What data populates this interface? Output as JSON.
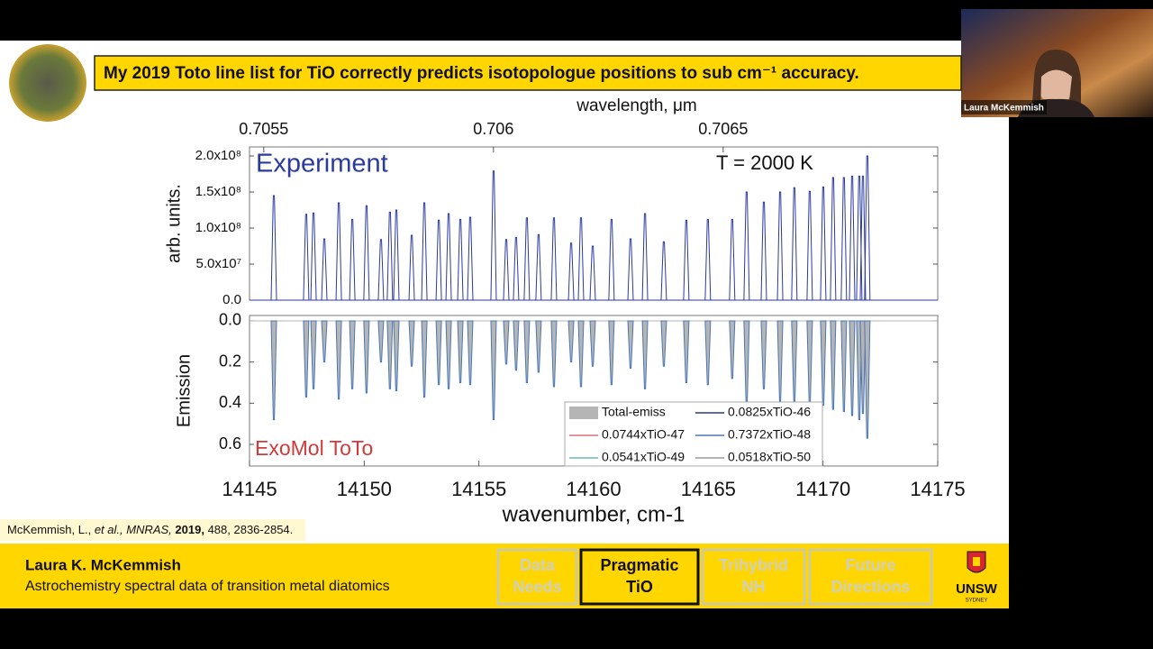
{
  "slide": {
    "title": "My 2019 Toto line list for TiO correctly predicts isotopologue positions to sub cm⁻¹ accuracy.",
    "reference": [
      "McKemmish, L.,",
      "et al., MNRAS,",
      "2019,",
      "488, 2836-2854."
    ],
    "footer_name": "Laura K. McKemmish",
    "footer_subtitle": "Astrochemistry spectral data of transition metal diatomics",
    "nav": [
      [
        "Data",
        "Needs"
      ],
      [
        "Pragmatic",
        "TiO"
      ],
      [
        "Trihybrid",
        "NH"
      ],
      [
        "Future",
        "Directions"
      ]
    ],
    "nav_active": 1,
    "logo": [
      "UNSW",
      "SYDNEY"
    ],
    "presenter": "Laura McKemmish"
  },
  "chart_data": [
    {
      "type": "stick",
      "ylabel": "arb. units.",
      "x2label": "wavelength, μm",
      "annotation": "T = 2000 K",
      "x": [
        14146.06,
        14147.47,
        14147.79,
        14148.26,
        14148.89,
        14149.48,
        14150.1,
        14150.73,
        14151.12,
        14151.4,
        14152.07,
        14152.62,
        14153.25,
        14153.68,
        14154.19,
        14154.62,
        14155.64,
        14156.19,
        14156.62,
        14157.09,
        14157.6,
        14158.27,
        14159.02,
        14159.45,
        14159.96,
        14160.78,
        14161.61,
        14162.24,
        14163.06,
        14164.04,
        14164.98,
        14166.04,
        14166.67,
        14167.42,
        14168.13,
        14168.75,
        14169.42,
        14170.01,
        14170.44,
        14170.91,
        14171.27,
        14171.58,
        14171.74,
        14171.93
      ],
      "series": [
        {
          "name": "Experiment",
          "color": "#2b3a9e",
          "values": [
            145000000,
            119000000,
            121000000,
            85000000,
            135000000,
            112000000,
            131000000,
            84000000,
            122000000,
            125000000,
            90000000,
            135000000,
            111000000,
            120000000,
            112000000,
            115000000,
            179000000,
            84000000,
            87000000,
            114000000,
            91000000,
            114000000,
            79000000,
            114000000,
            75000000,
            112000000,
            85000000,
            120000000,
            81000000,
            111000000,
            112000000,
            112000000,
            150000000,
            136000000,
            150000000,
            156000000,
            151000000,
            157000000,
            170000000,
            170000000,
            172000000,
            172000000,
            172000000,
            200000000
          ]
        }
      ],
      "xlim": [
        14145,
        14175
      ],
      "x2lim": [
        0.705469,
        0.706967
      ],
      "x2ticks": [
        0.7055,
        0.706,
        0.7065
      ],
      "ylim": [
        0,
        212500000
      ],
      "yticks": [
        {
          "value": 0,
          "label": "0.0"
        },
        {
          "value": 50000000,
          "label": "5.0x10⁷"
        },
        {
          "value": 100000000,
          "label": "1.0x10⁸"
        },
        {
          "value": 150000000,
          "label": "1.5x10⁸"
        },
        {
          "value": 200000000,
          "label": "2.0x10⁸"
        }
      ]
    },
    {
      "type": "stick",
      "inverted": true,
      "xlabel": "wavenumber, cm-1",
      "ylabel": "Emission",
      "annotation": "ExoMol ToTo",
      "legend": "lower right",
      "x": [
        14146.06,
        14147.47,
        14147.79,
        14148.26,
        14148.89,
        14149.48,
        14150.1,
        14150.73,
        14151.12,
        14151.4,
        14152.07,
        14152.62,
        14153.25,
        14153.68,
        14154.19,
        14154.62,
        14155.64,
        14156.19,
        14156.62,
        14157.09,
        14157.6,
        14158.27,
        14159.02,
        14159.45,
        14159.96,
        14160.78,
        14161.61,
        14162.24,
        14163.06,
        14164.04,
        14164.98,
        14166.04,
        14166.67,
        14167.42,
        14168.13,
        14168.75,
        14169.42,
        14170.01,
        14170.44,
        14170.91,
        14171.27,
        14171.58,
        14171.74,
        14171.93
      ],
      "series": [
        {
          "name": "Total-emiss",
          "color": "#b5b5b5",
          "values": [
            0.48,
            0.37,
            0.33,
            0.2,
            0.38,
            0.33,
            0.35,
            0.2,
            0.33,
            0.34,
            0.22,
            0.37,
            0.31,
            0.33,
            0.3,
            0.31,
            0.48,
            0.21,
            0.24,
            0.3,
            0.25,
            0.32,
            0.2,
            0.32,
            0.22,
            0.31,
            0.23,
            0.33,
            0.22,
            0.3,
            0.31,
            0.28,
            0.41,
            0.33,
            0.39,
            0.4,
            0.41,
            0.41,
            0.43,
            0.44,
            0.46,
            0.48,
            0.45,
            0.57
          ]
        },
        {
          "name": "0.0825xTiO-46",
          "color": "#2b3a7e"
        },
        {
          "name": "0.0744xTiO-47",
          "color": "#d9707a"
        },
        {
          "name": "0.7372xTiO-48",
          "color": "#4a78b8"
        },
        {
          "name": "0.0541xTiO-49",
          "color": "#6fb8b4"
        },
        {
          "name": "0.0518xTiO-50",
          "color": "#9a9a9a"
        }
      ],
      "xlim": [
        14145,
        14175
      ],
      "xticks": [
        14145,
        14150,
        14155,
        14160,
        14165,
        14170,
        14175
      ],
      "ylim": [
        -0.026,
        0.705
      ],
      "yticks": [
        {
          "value": 0,
          "label": "0.0"
        },
        {
          "value": 0.2,
          "label": "0.2"
        },
        {
          "value": 0.4,
          "label": "0.4"
        },
        {
          "value": 0.6,
          "label": "0.6"
        }
      ]
    }
  ]
}
